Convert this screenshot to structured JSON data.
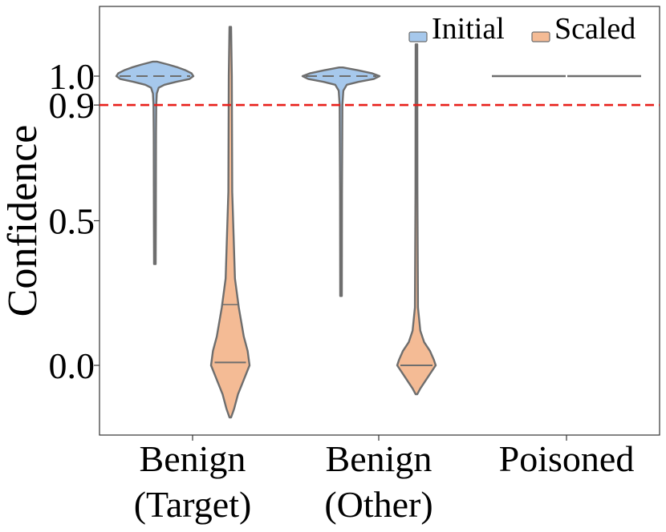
{
  "chart_data": {
    "type": "violin",
    "ylabel": "Confidence",
    "yticks": [
      {
        "value": 0.0,
        "label": "0.0"
      },
      {
        "value": 0.5,
        "label": "0.5"
      },
      {
        "value": 0.9,
        "label": "0.9"
      },
      {
        "value": 1.0,
        "label": "1.0"
      }
    ],
    "ylim": [
      -0.22,
      1.24
    ],
    "reference_line": {
      "value": 0.9,
      "color": "#e8201b",
      "style": "dashed"
    },
    "categories": [
      {
        "line1": "Benign",
        "line2": "(Target)"
      },
      {
        "line1": "Benign",
        "line2": "(Other)"
      },
      {
        "line1": "Poisoned",
        "line2": ""
      }
    ],
    "legend": {
      "position": "top-right",
      "items": [
        {
          "label": "Initial",
          "color": "#a6c8ec"
        },
        {
          "label": "Scaled",
          "color": "#f4bb95"
        }
      ]
    },
    "series": [
      {
        "name": "Initial",
        "color": "#a6c8ec",
        "violins": [
          {
            "min": 0.35,
            "max": 1.05,
            "median": 1.0,
            "profile": [
              [
                1.05,
                0.05
              ],
              [
                1.04,
                0.35
              ],
              [
                1.03,
                0.6
              ],
              [
                1.02,
                0.8
              ],
              [
                1.01,
                0.95
              ],
              [
                1.0,
                1.0
              ],
              [
                0.99,
                0.9
              ],
              [
                0.98,
                0.55
              ],
              [
                0.97,
                0.25
              ],
              [
                0.96,
                0.1
              ],
              [
                0.94,
                0.05
              ],
              [
                0.9,
                0.035
              ],
              [
                0.8,
                0.03
              ],
              [
                0.5,
                0.025
              ],
              [
                0.35,
                0.02
              ]
            ]
          },
          {
            "min": 0.24,
            "max": 1.03,
            "median": 1.0,
            "profile": [
              [
                1.03,
                0.05
              ],
              [
                1.02,
                0.45
              ],
              [
                1.01,
                0.8
              ],
              [
                1.0,
                1.0
              ],
              [
                0.99,
                0.85
              ],
              [
                0.98,
                0.45
              ],
              [
                0.97,
                0.15
              ],
              [
                0.95,
                0.06
              ],
              [
                0.9,
                0.035
              ],
              [
                0.6,
                0.025
              ],
              [
                0.24,
                0.02
              ]
            ]
          },
          {
            "min": 1.0,
            "max": 1.0,
            "median": 1.0,
            "flat": true
          }
        ]
      },
      {
        "name": "Scaled",
        "color": "#f4bb95",
        "violins": [
          {
            "min": -0.18,
            "max": 1.17,
            "median": 0.01,
            "q1": 0.01,
            "q3": 0.21,
            "profile": [
              [
                1.17,
                0.02
              ],
              [
                1.0,
                0.04
              ],
              [
                0.6,
                0.05
              ],
              [
                0.3,
                0.12
              ],
              [
                0.2,
                0.22
              ],
              [
                0.1,
                0.35
              ],
              [
                0.05,
                0.45
              ],
              [
                0.0,
                0.5
              ],
              [
                -0.05,
                0.35
              ],
              [
                -0.1,
                0.2
              ],
              [
                -0.15,
                0.1
              ],
              [
                -0.18,
                0.02
              ]
            ]
          },
          {
            "min": -0.1,
            "max": 1.11,
            "median": 0.0,
            "profile": [
              [
                1.11,
                0.02
              ],
              [
                0.6,
                0.025
              ],
              [
                0.2,
                0.04
              ],
              [
                0.12,
                0.1
              ],
              [
                0.08,
                0.2
              ],
              [
                0.05,
                0.35
              ],
              [
                0.02,
                0.45
              ],
              [
                0.0,
                0.5
              ],
              [
                -0.03,
                0.35
              ],
              [
                -0.06,
                0.2
              ],
              [
                -0.08,
                0.1
              ],
              [
                -0.1,
                0.02
              ]
            ]
          },
          {
            "min": 1.0,
            "max": 1.0,
            "median": 1.0,
            "flat": true
          }
        ]
      }
    ]
  }
}
